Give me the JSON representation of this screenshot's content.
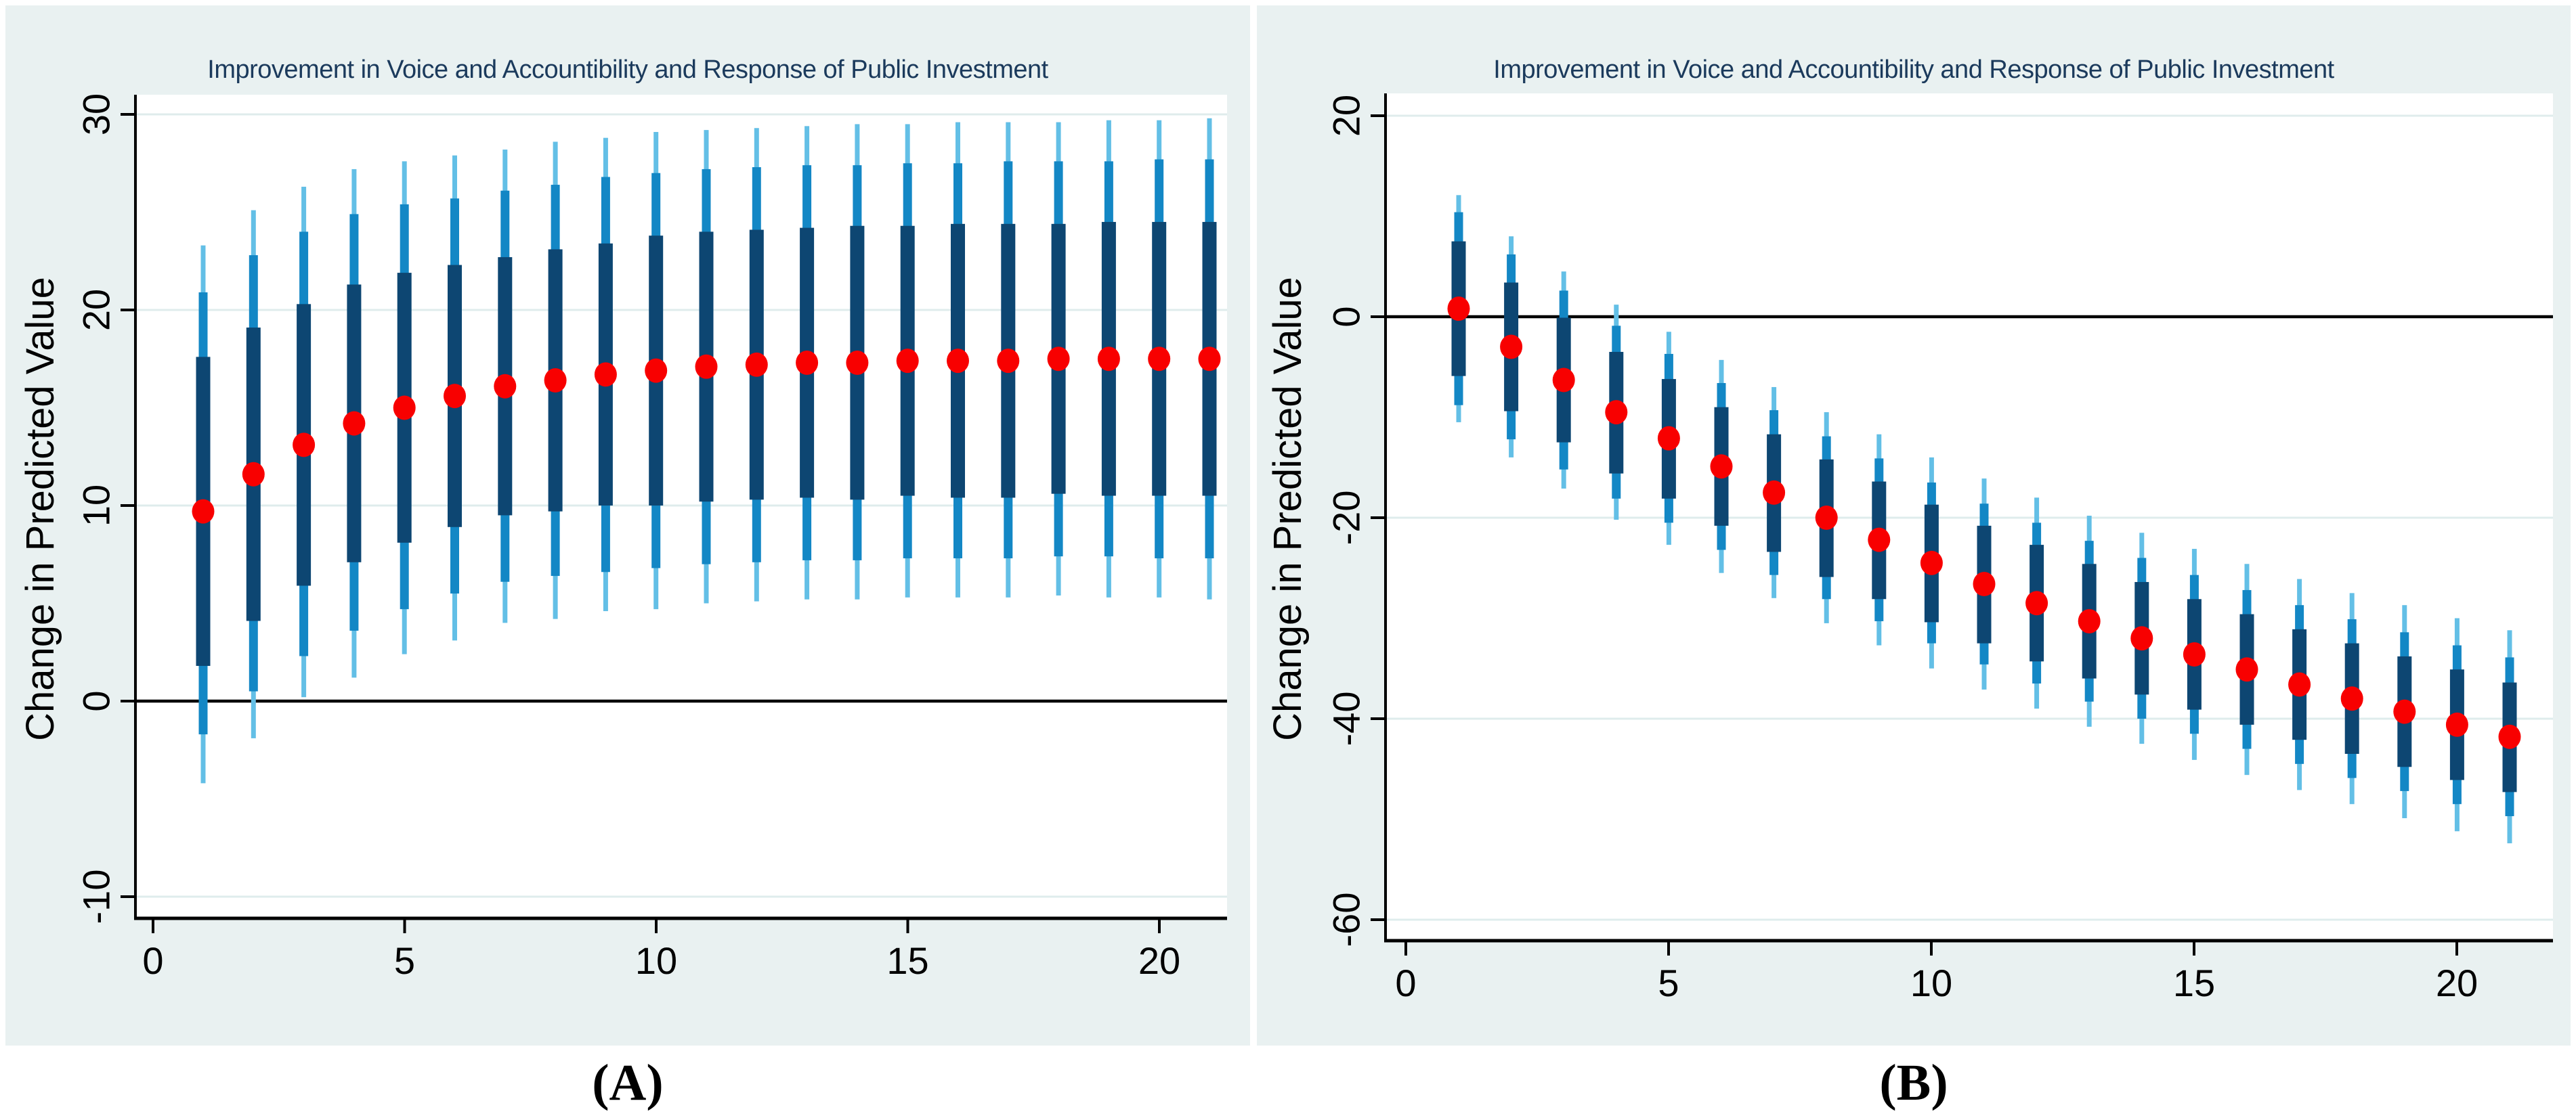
{
  "figure": {
    "panel_labels": [
      "(A)",
      "(B)"
    ],
    "background_color": "#ffffff",
    "card_color": "#e9f1f1"
  },
  "styles": {
    "plot_bg": "#ffffff",
    "grid_color": "#dfecec",
    "axis_color": "#000000",
    "zero_line_color": "#000000",
    "ci_outer_color": "#63bfe6",
    "ci_mid_color": "#1387c5",
    "ci_inner_color": "#0d4672",
    "point_color": "#f80000",
    "title_color": "#1b3a5c",
    "text_color": "#000000"
  },
  "chart_data": [
    {
      "id": "A",
      "type": "scatter",
      "subtype": "point-estimate-with-nested-confidence-intervals",
      "title": "Improvement in Voice and Accountibility and Response of Public Investment",
      "xlabel": "",
      "ylabel": "Change in Predicted Value",
      "panel_label": "(A)",
      "legend": "none",
      "grid": true,
      "zero_line": 0,
      "xlim": [
        -1.0,
        21.6
      ],
      "ylim": [
        -11.3,
        32.7
      ],
      "xticks": {
        "values": [
          0,
          5,
          10,
          15,
          20
        ],
        "labels": [
          "0",
          "5",
          "10",
          "15",
          "20"
        ]
      },
      "yticks": {
        "values": [
          30,
          20,
          10,
          0,
          -10
        ],
        "labels": [
          "30",
          "20",
          "10",
          "0",
          "-10"
        ]
      },
      "x": [
        1,
        2,
        3,
        4,
        5,
        6,
        7,
        8,
        9,
        10,
        11,
        12,
        13,
        14,
        15,
        16,
        17,
        18,
        19,
        20,
        21
      ],
      "points": [
        9.7,
        11.6,
        13.1,
        14.2,
        15.0,
        15.6,
        16.1,
        16.4,
        16.7,
        16.9,
        17.1,
        17.2,
        17.3,
        17.3,
        17.4,
        17.4,
        17.4,
        17.5,
        17.5,
        17.5,
        17.5
      ],
      "ci_inner": {
        "hi": [
          17.6,
          19.1,
          20.3,
          21.3,
          21.9,
          22.3,
          22.7,
          23.1,
          23.4,
          23.8,
          24.0,
          24.1,
          24.2,
          24.3,
          24.3,
          24.4,
          24.4,
          24.4,
          24.5,
          24.5,
          24.5
        ],
        "lo": [
          1.8,
          4.1,
          5.9,
          7.1,
          8.1,
          8.9,
          9.5,
          9.7,
          10.0,
          10.0,
          10.2,
          10.3,
          10.4,
          10.3,
          10.5,
          10.4,
          10.4,
          10.6,
          10.5,
          10.5,
          10.5
        ]
      },
      "ci_mid": {
        "hi": [
          20.9,
          22.8,
          24.0,
          24.9,
          25.4,
          25.7,
          26.1,
          26.4,
          26.8,
          27.0,
          27.2,
          27.3,
          27.4,
          27.4,
          27.5,
          27.5,
          27.6,
          27.6,
          27.6,
          27.7,
          27.7
        ],
        "lo": [
          -1.7,
          0.5,
          2.3,
          3.6,
          4.7,
          5.5,
          6.1,
          6.4,
          6.6,
          6.8,
          7.0,
          7.1,
          7.2,
          7.2,
          7.3,
          7.3,
          7.3,
          7.4,
          7.4,
          7.3,
          7.3
        ]
      },
      "ci_outer": {
        "hi": [
          23.3,
          25.1,
          26.3,
          27.2,
          27.6,
          27.9,
          28.2,
          28.6,
          28.8,
          29.1,
          29.2,
          29.3,
          29.4,
          29.5,
          29.5,
          29.6,
          29.6,
          29.6,
          29.7,
          29.7,
          29.8
        ],
        "lo": [
          -4.2,
          -1.9,
          0.2,
          1.2,
          2.4,
          3.1,
          4.0,
          4.2,
          4.6,
          4.7,
          5.0,
          5.1,
          5.2,
          5.2,
          5.3,
          5.3,
          5.3,
          5.4,
          5.3,
          5.3,
          5.2
        ]
      }
    },
    {
      "id": "B",
      "type": "scatter",
      "subtype": "point-estimate-with-nested-confidence-intervals",
      "title": "Improvement in Voice and Accountibility and Response of Public Investment",
      "xlabel": "",
      "ylabel": "Change in Predicted Value",
      "panel_label": "(B)",
      "legend": "none",
      "grid": true,
      "zero_line": 0,
      "xlim": [
        -1.0,
        21.8
      ],
      "ylim": [
        -62.3,
        22.3
      ],
      "xticks": {
        "values": [
          0,
          5,
          10,
          15,
          20
        ],
        "labels": [
          "0",
          "5",
          "10",
          "15",
          "20"
        ]
      },
      "yticks": {
        "values": [
          20,
          0,
          -20,
          -40,
          -60
        ],
        "labels": [
          "20",
          "0",
          "-20",
          "-40",
          "-60"
        ]
      },
      "x": [
        1,
        2,
        3,
        4,
        5,
        6,
        7,
        8,
        9,
        10,
        11,
        12,
        13,
        14,
        15,
        16,
        17,
        18,
        19,
        20,
        21
      ],
      "points": [
        0.8,
        -3.0,
        -6.3,
        -9.5,
        -12.1,
        -14.9,
        -17.5,
        -20.0,
        -22.2,
        -24.5,
        -26.6,
        -28.5,
        -30.3,
        -32.0,
        -33.6,
        -35.1,
        -36.6,
        -38.0,
        -39.3,
        -40.6,
        -41.8
      ],
      "ci_inner": {
        "hi": [
          7.5,
          3.4,
          -0.1,
          -3.5,
          -6.2,
          -9.0,
          -11.7,
          -14.2,
          -16.4,
          -18.7,
          -20.8,
          -22.7,
          -24.6,
          -26.4,
          -28.1,
          -29.6,
          -31.1,
          -32.5,
          -33.8,
          -35.1,
          -36.4
        ],
        "lo": [
          -5.9,
          -9.4,
          -12.5,
          -15.6,
          -18.1,
          -20.8,
          -23.4,
          -25.9,
          -28.1,
          -30.4,
          -32.5,
          -34.3,
          -36.0,
          -37.6,
          -39.1,
          -40.6,
          -42.1,
          -43.5,
          -44.8,
          -46.1,
          -47.3
        ]
      },
      "ci_mid": {
        "hi": [
          10.4,
          6.2,
          2.6,
          -0.9,
          -3.7,
          -6.6,
          -9.3,
          -11.9,
          -14.1,
          -16.5,
          -18.6,
          -20.5,
          -22.3,
          -24.0,
          -25.7,
          -27.2,
          -28.7,
          -30.1,
          -31.4,
          -32.7,
          -33.9
        ],
        "lo": [
          -8.8,
          -12.2,
          -15.2,
          -18.1,
          -20.5,
          -23.2,
          -25.7,
          -28.1,
          -30.3,
          -32.5,
          -34.6,
          -36.5,
          -38.3,
          -40.0,
          -41.5,
          -43.0,
          -44.5,
          -45.9,
          -47.2,
          -48.5,
          -49.7
        ]
      },
      "ci_outer": {
        "hi": [
          12.1,
          8.0,
          4.5,
          1.2,
          -1.5,
          -4.3,
          -7.0,
          -9.5,
          -11.7,
          -14.0,
          -16.1,
          -18.0,
          -19.8,
          -21.5,
          -23.1,
          -24.6,
          -26.1,
          -27.5,
          -28.7,
          -30.0,
          -31.2
        ],
        "lo": [
          -10.5,
          -14.0,
          -17.1,
          -20.2,
          -22.7,
          -25.5,
          -28.0,
          -30.5,
          -32.7,
          -35.0,
          -37.1,
          -39.0,
          -40.8,
          -42.5,
          -44.1,
          -45.6,
          -47.1,
          -48.5,
          -49.9,
          -51.2,
          -52.4
        ]
      }
    }
  ]
}
